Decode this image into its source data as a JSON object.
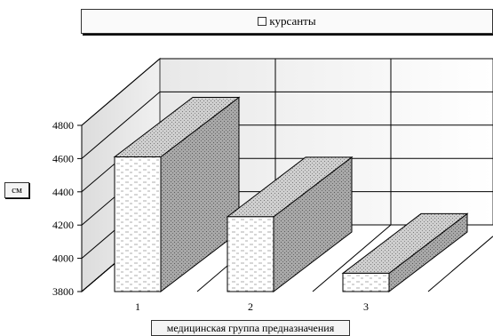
{
  "chart_data": {
    "type": "bar",
    "title": "",
    "categories": [
      "1",
      "2",
      "3"
    ],
    "series": [
      {
        "name": "курсанты",
        "values": [
          4610,
          4250,
          3910
        ]
      }
    ],
    "yticks": [
      "3800",
      "4000",
      "4200",
      "4400",
      "4600",
      "4800"
    ],
    "ylim": [
      3800,
      4800
    ],
    "ylabel": "см",
    "xlabel": "медицинская группа предназначения",
    "legend": "top",
    "grid": true,
    "colors": {
      "front": "#ffffff",
      "side": "#a0a0a0",
      "top": "#c8c8c8",
      "wall": "#e6e6e6"
    }
  }
}
